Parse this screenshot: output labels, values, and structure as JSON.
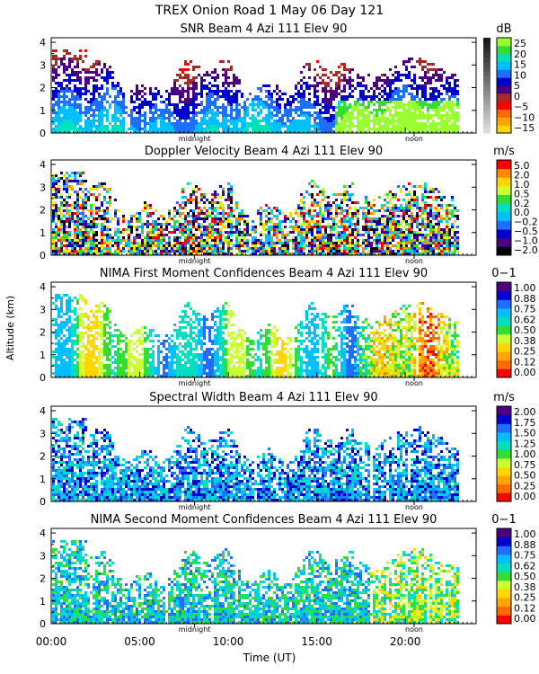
{
  "header": {
    "title": "TREX Onion Road    1 May 06 Day 121"
  },
  "x_axis": {
    "label": "Time (UT)",
    "range_hours": [
      0,
      24
    ],
    "tick_labels": [
      {
        "hours": 0,
        "label": "00:00"
      },
      {
        "hours": 5,
        "label": "05:00"
      },
      {
        "hours": 10,
        "label": "10:00"
      },
      {
        "hours": 15,
        "label": "15:00"
      },
      {
        "hours": 20,
        "label": "20:00"
      }
    ],
    "markers": [
      {
        "hours": 8.1,
        "label": "midnight"
      },
      {
        "hours": 20.5,
        "label": "noon"
      }
    ]
  },
  "y_axis": {
    "label": "Altitude (km)",
    "range_km": [
      0,
      4.2
    ],
    "tick_labels": [
      "0",
      "1",
      "2",
      "3",
      "4"
    ]
  },
  "colors": {
    "grayscale_bottom": "#dcdcdc",
    "grayscale_top": "#1a1a1a"
  },
  "chart_data": [
    {
      "type": "heatmap",
      "title": "SNR Beam 4 Azi 111 Elev 90",
      "unit": "dB",
      "colorbar_labels": [
        "25",
        "20",
        "15",
        "10",
        "5",
        "0",
        "−5",
        "−10",
        "−15"
      ],
      "colorbar_colors": [
        "#ffd700",
        "#ffa500",
        "#ff6a00",
        "#ff0000",
        "#a52a2a",
        "#4b0082",
        "#0000cd",
        "#1e6fff",
        "#00bfff",
        "#00e0c0",
        "#33dd33",
        "#99ff33"
      ],
      "grayscale": true,
      "ylim": [
        0,
        4.2
      ],
      "xlim": [
        0,
        24
      ]
    },
    {
      "type": "heatmap",
      "title": "Doppler Velocity Beam 4 Azi 111 Elev 90",
      "unit": "m/s",
      "colorbar_labels": [
        "5.0",
        "2.0",
        "1.0",
        "0.5",
        "0.2",
        "0.0",
        "−0.2",
        "−0.5",
        "−1.0",
        "−2.0"
      ],
      "colorbar_colors": [
        "#000000",
        "#4b0082",
        "#0000cd",
        "#1e6fff",
        "#00bfff",
        "#00e0c0",
        "#33dd33",
        "#ccff33",
        "#ffd700",
        "#ff8c00",
        "#ff0000"
      ],
      "grayscale": false,
      "ylim": [
        0,
        4.2
      ],
      "xlim": [
        0,
        24
      ]
    },
    {
      "type": "heatmap",
      "title": "NIMA First Moment Confidences Beam 4 Azi 111 Elev 90",
      "unit": "0−1",
      "colorbar_labels": [
        "1.00",
        "0.88",
        "0.75",
        "0.62",
        "0.50",
        "0.38",
        "0.25",
        "0.12",
        "0.00"
      ],
      "colorbar_colors": [
        "#ff0000",
        "#ff6a00",
        "#ffa500",
        "#ffd700",
        "#ccff33",
        "#33dd33",
        "#00e0c0",
        "#00bfff",
        "#1e6fff",
        "#0000cd",
        "#4b0082"
      ],
      "grayscale": false,
      "ylim": [
        0,
        4.2
      ],
      "xlim": [
        0,
        24
      ]
    },
    {
      "type": "heatmap",
      "title": "Spectral Width Beam 4 Azi 111 Elev 90",
      "unit": "m/s",
      "colorbar_labels": [
        "2.00",
        "1.75",
        "1.50",
        "1.25",
        "1.00",
        "0.75",
        "0.50",
        "0.25",
        "0.00"
      ],
      "colorbar_colors": [
        "#ff0000",
        "#ff6a00",
        "#ffa500",
        "#ffd700",
        "#ccff33",
        "#33dd33",
        "#00e0c0",
        "#00bfff",
        "#1e6fff",
        "#0000cd",
        "#4b0082"
      ],
      "grayscale": false,
      "ylim": [
        0,
        4.2
      ],
      "xlim": [
        0,
        24
      ]
    },
    {
      "type": "heatmap",
      "title": "NIMA Second Moment Confidences Beam 4 Azi 111 Elev 90",
      "unit": "0−1",
      "colorbar_labels": [
        "1.00",
        "0.88",
        "0.75",
        "0.62",
        "0.50",
        "0.38",
        "0.25",
        "0.12",
        "0.00"
      ],
      "colorbar_colors": [
        "#ff0000",
        "#ff6a00",
        "#ffa500",
        "#ffd700",
        "#ccff33",
        "#33dd33",
        "#00e0c0",
        "#00bfff",
        "#1e6fff",
        "#0000cd",
        "#4b0082"
      ],
      "grayscale": false,
      "ylim": [
        0,
        4.2
      ],
      "xlim": [
        0,
        24
      ]
    }
  ]
}
